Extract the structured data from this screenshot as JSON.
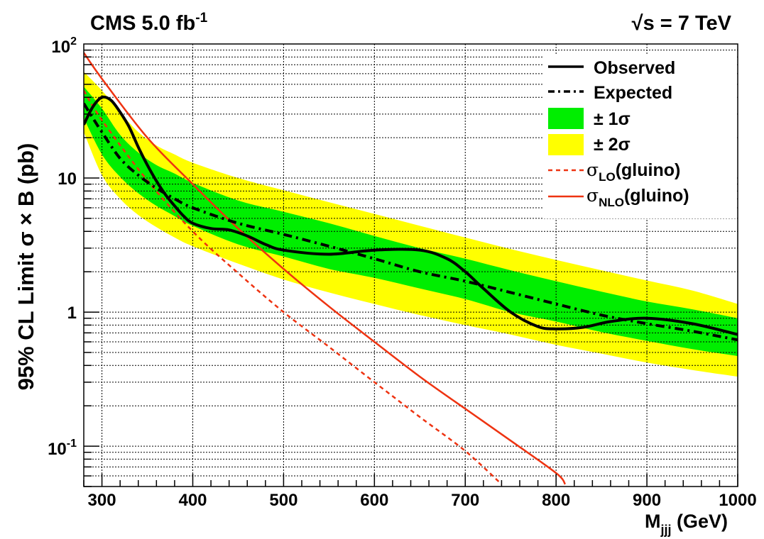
{
  "header": {
    "experiment": "CMS 5.0 fb",
    "lumi_exp": "-1",
    "energy_root": "√",
    "energy_rest": "s = 7 TeV"
  },
  "chart_data": {
    "type": "line",
    "yscale": "log",
    "xlim": [
      280,
      1000
    ],
    "ylim": [
      0.05,
      100
    ],
    "grid": true,
    "legend_position": "top-right",
    "xlabel": {
      "main": "M",
      "sub": "jjj",
      "rest": " (GeV)"
    },
    "ylabel": "95% CL Limit σ × B (pb)",
    "x_ticks": [
      "300",
      "400",
      "500",
      "600",
      "700",
      "800",
      "900",
      "1000"
    ],
    "x_tick_values": [
      300,
      400,
      500,
      600,
      700,
      800,
      900,
      1000
    ],
    "y_ticks": [
      {
        "value": 100,
        "base": "10",
        "exp": "2"
      },
      {
        "value": 10,
        "base": "10",
        "exp": ""
      },
      {
        "value": 1,
        "base": "1",
        "exp": ""
      },
      {
        "value": 0.1,
        "base": "10",
        "exp": "-1"
      }
    ],
    "legend": [
      {
        "label": "Observed",
        "sym": "solid-black"
      },
      {
        "label": "Expected",
        "sym": "dashdot-black"
      },
      {
        "label": "± 1σ",
        "sym": "band-green"
      },
      {
        "label": "± 2σ",
        "sym": "band-yellow"
      },
      {
        "label": "σ",
        "sub": "LO",
        "rest": "(gluino)",
        "sym": "dashed-red"
      },
      {
        "label": "σ",
        "sub": "NLO",
        "rest": "(gluino)",
        "sym": "solid-red"
      }
    ],
    "colors": {
      "green": "#00ee00",
      "yellow": "#ffff00",
      "red": "#ee3311",
      "black": "#000000"
    },
    "series": [
      {
        "name": "Observed",
        "x": [
          280,
          290,
          300,
          310,
          320,
          330,
          340,
          350,
          360,
          370,
          380,
          390,
          400,
          420,
          440,
          460,
          480,
          500,
          550,
          600,
          650,
          680,
          700,
          720,
          750,
          780,
          800,
          830,
          860,
          900,
          950,
          1000
        ],
        "y": [
          25,
          34,
          40,
          38,
          31,
          24,
          17,
          12.5,
          9.5,
          7.5,
          6.2,
          5.2,
          4.6,
          4.2,
          4.1,
          3.7,
          3.2,
          2.9,
          2.7,
          2.9,
          2.9,
          2.5,
          2.0,
          1.5,
          1.0,
          0.78,
          0.75,
          0.77,
          0.85,
          0.9,
          0.82,
          0.68
        ]
      },
      {
        "name": "Expected",
        "x": [
          280,
          290,
          300,
          320,
          340,
          360,
          380,
          400,
          450,
          500,
          550,
          600,
          650,
          700,
          750,
          800,
          850,
          900,
          950,
          1000
        ],
        "y": [
          36,
          28,
          22,
          14,
          10.5,
          8.4,
          7.0,
          6.0,
          4.6,
          3.8,
          3.1,
          2.5,
          2.0,
          1.7,
          1.4,
          1.15,
          0.95,
          0.82,
          0.72,
          0.62
        ]
      },
      {
        "name": "Expected ±1σ",
        "x": [
          280,
          300,
          320,
          340,
          360,
          380,
          400,
          450,
          500,
          550,
          600,
          650,
          700,
          750,
          800,
          850,
          900,
          950,
          1000
        ],
        "low": [
          28,
          15,
          10.2,
          7.7,
          6.2,
          5.2,
          4.4,
          3.2,
          2.6,
          2.1,
          1.8,
          1.5,
          1.25,
          1.0,
          0.85,
          0.71,
          0.61,
          0.53,
          0.47
        ],
        "high": [
          48,
          33,
          21,
          15.5,
          12.5,
          10.8,
          9.2,
          6.8,
          5.6,
          4.6,
          3.7,
          3.0,
          2.5,
          2.05,
          1.7,
          1.42,
          1.2,
          1.05,
          0.9
        ]
      },
      {
        "name": "Expected ±2σ",
        "x": [
          280,
          300,
          320,
          340,
          360,
          380,
          400,
          450,
          500,
          550,
          600,
          650,
          700,
          750,
          800,
          850,
          900,
          950,
          1000
        ],
        "low": [
          22,
          10.5,
          7.0,
          5.3,
          4.3,
          3.6,
          3.1,
          2.3,
          1.75,
          1.4,
          1.15,
          0.95,
          0.8,
          0.68,
          0.57,
          0.49,
          0.42,
          0.37,
          0.33
        ],
        "high": [
          62,
          45,
          31,
          22,
          17.5,
          15,
          13,
          10,
          8.1,
          6.6,
          5.4,
          4.4,
          3.6,
          2.95,
          2.45,
          2.05,
          1.72,
          1.45,
          1.15
        ]
      },
      {
        "name": "σLO(gluino)",
        "x": [
          280,
          300,
          350,
          400,
          450,
          500,
          550,
          600,
          650,
          700,
          740
        ],
        "y": [
          45,
          27,
          9.6,
          4.0,
          1.95,
          1.0,
          0.55,
          0.3,
          0.165,
          0.092,
          0.052
        ]
      },
      {
        "name": "σNLO(gluino)",
        "x": [
          280,
          300,
          350,
          400,
          450,
          500,
          550,
          600,
          650,
          700,
          750,
          800,
          810
        ],
        "y": [
          86,
          55,
          20,
          9.0,
          4.2,
          2.1,
          1.1,
          0.6,
          0.33,
          0.19,
          0.11,
          0.063,
          0.052
        ]
      }
    ]
  }
}
